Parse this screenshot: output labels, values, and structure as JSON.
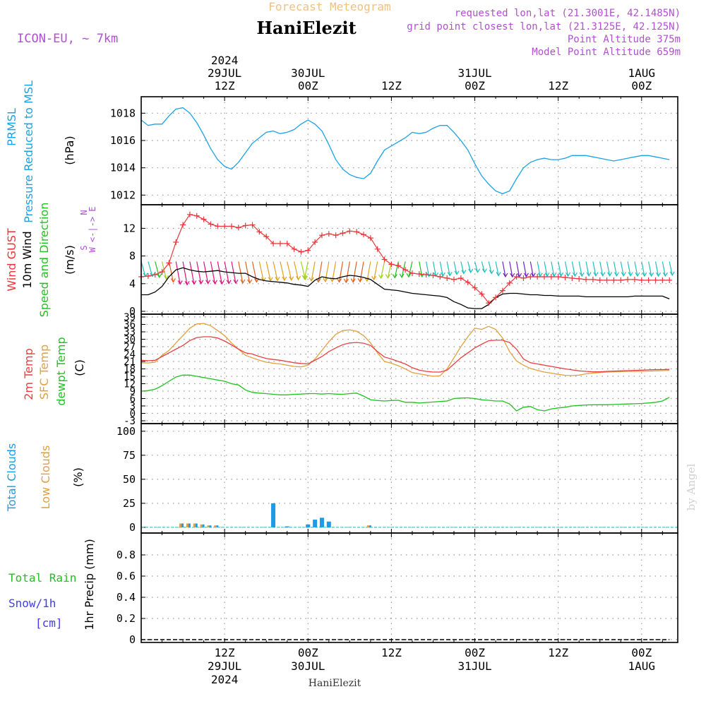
{
  "header": {
    "product": "Forecast Meteogram",
    "location": "HaniElezit",
    "model": "ICON-EU, ~ 7km",
    "requested": "requested lon,lat (21.3001E, 42.1485N)",
    "gridpoint": "grid point closest lon,lat (21.3125E, 42.125N)",
    "point_alt": "Point Altitude 375m",
    "model_alt": "Model Point Altitude 659m"
  },
  "footer": {
    "location": "HaniElezit",
    "watermark": "by Angel"
  },
  "colors": {
    "pressure": "#1ba1e8",
    "gust": "#e8363b",
    "wind": "#000000",
    "temp": "#e84040",
    "sfc": "#e0a040",
    "dewpt": "#22c022",
    "clouds_total": "#1e9be8",
    "clouds_low": "#e0a040",
    "rain": "#22c022",
    "snow": "#4040e8",
    "title": "#f0c080",
    "info": "#b050d0"
  },
  "time_axis": {
    "ticks": [
      {
        "h": 12,
        "top": [
          "2024",
          "29JUL",
          "12Z"
        ],
        "bottom": [
          "12Z",
          "29JUL",
          "2024"
        ]
      },
      {
        "h": 24,
        "top": [
          "30JUL",
          "00Z"
        ],
        "bottom": [
          "00Z",
          "30JUL"
        ]
      },
      {
        "h": 36,
        "top": [
          "12Z"
        ],
        "bottom": [
          "12Z"
        ]
      },
      {
        "h": 48,
        "top": [
          "31JUL",
          "00Z"
        ],
        "bottom": [
          "00Z",
          "31JUL"
        ]
      },
      {
        "h": 60,
        "top": [
          "12Z"
        ],
        "bottom": [
          "12Z"
        ]
      },
      {
        "h": 72,
        "top": [
          "1AUG",
          "00Z"
        ],
        "bottom": [
          "00Z",
          "1AUG"
        ]
      }
    ]
  },
  "chart_data": [
    {
      "type": "line",
      "title": "PRMSL Pressure Reduced to MSL",
      "ylabel_lines": [
        "PRMSL",
        "Pressure Reduced to MSL"
      ],
      "unit": "(hPa)",
      "ylim": [
        1011.5,
        1019
      ],
      "yticks": [
        1012,
        1014,
        1016,
        1018
      ],
      "x_hours": [
        0,
        1,
        2,
        3,
        4,
        5,
        6,
        7,
        8,
        9,
        10,
        11,
        12,
        13,
        14,
        15,
        16,
        17,
        18,
        19,
        20,
        21,
        22,
        23,
        24,
        25,
        26,
        27,
        28,
        29,
        30,
        31,
        32,
        33,
        34,
        35,
        36,
        37,
        38,
        39,
        40,
        41,
        42,
        43,
        44,
        45,
        46,
        47,
        48,
        49,
        50,
        51,
        52,
        53,
        54,
        55,
        56,
        57,
        58,
        59,
        60,
        61,
        62,
        63,
        64,
        65,
        66,
        67,
        68,
        69,
        70,
        71,
        72,
        73,
        74,
        75,
        76
      ],
      "series": [
        {
          "name": "PRMSL",
          "values": [
            1017.5,
            1017.1,
            1017.2,
            1017.2,
            1017.8,
            1018.3,
            1018.4,
            1018.0,
            1017.3,
            1016.4,
            1015.4,
            1014.6,
            1014.1,
            1013.9,
            1014.4,
            1015.1,
            1015.8,
            1016.2,
            1016.6,
            1016.7,
            1016.5,
            1016.6,
            1016.8,
            1017.2,
            1017.5,
            1017.2,
            1016.7,
            1015.7,
            1014.6,
            1013.9,
            1013.5,
            1013.3,
            1013.2,
            1013.6,
            1014.5,
            1015.3,
            1015.6,
            1015.9,
            1016.2,
            1016.6,
            1016.5,
            1016.6,
            1016.9,
            1017.1,
            1017.1,
            1016.6,
            1016.0,
            1015.3,
            1014.3,
            1013.4,
            1012.8,
            1012.3,
            1012.1,
            1012.3,
            1013.2,
            1014.0,
            1014.4,
            1014.6,
            1014.7,
            1014.6,
            1014.6,
            1014.7,
            1014.9,
            1014.9,
            1014.9,
            1014.8,
            1014.7,
            1014.6,
            1014.5,
            1014.6,
            1014.7,
            1014.8,
            1014.9,
            1014.9,
            1014.8,
            1014.7,
            1014.6
          ]
        }
      ]
    },
    {
      "type": "line",
      "title": "Wind GUST, 10m Wind Speed and Direction",
      "ylabel_lines": [
        "Wind GUST",
        "10m Wind",
        "Speed and Direction"
      ],
      "unit": "(m/s)",
      "compass": [
        "N",
        "W <-|-> E",
        "S"
      ],
      "ylim": [
        0,
        15
      ],
      "yticks": [
        0,
        4,
        8,
        12
      ],
      "x_hours": [
        0,
        1,
        2,
        3,
        4,
        5,
        6,
        7,
        8,
        9,
        10,
        11,
        12,
        13,
        14,
        15,
        16,
        17,
        18,
        19,
        20,
        21,
        22,
        23,
        24,
        25,
        26,
        27,
        28,
        29,
        30,
        31,
        32,
        33,
        34,
        35,
        36,
        37,
        38,
        39,
        40,
        41,
        42,
        43,
        44,
        45,
        46,
        47,
        48,
        49,
        50,
        51,
        52,
        53,
        54,
        55,
        56,
        57,
        58,
        59,
        60,
        61,
        62,
        63,
        64,
        65,
        66,
        67,
        68,
        69,
        70,
        71,
        72,
        73,
        74,
        75,
        76
      ],
      "series": [
        {
          "name": "Wind GUST",
          "values": [
            5.0,
            5.1,
            5.3,
            5.7,
            7.0,
            10.0,
            12.5,
            14.0,
            13.8,
            13.3,
            12.6,
            12.3,
            12.3,
            12.3,
            12.1,
            12.4,
            12.5,
            11.5,
            10.8,
            9.8,
            9.8,
            9.8,
            9.0,
            8.6,
            8.8,
            10.0,
            11.0,
            11.2,
            11.0,
            11.3,
            11.6,
            11.5,
            11.1,
            10.6,
            9.0,
            7.5,
            6.8,
            6.6,
            6.0,
            5.5,
            5.4,
            5.3,
            5.2,
            5.0,
            4.8,
            4.6,
            4.8,
            4.2,
            3.4,
            2.5,
            1.2,
            2.0,
            3.0,
            4.1,
            5.0,
            4.8,
            5.0,
            5.0,
            5.0,
            5.0,
            5.0,
            4.9,
            4.8,
            4.7,
            4.6,
            4.6,
            4.5,
            4.5,
            4.5,
            4.5,
            4.6,
            4.6,
            4.5,
            4.5,
            4.5,
            4.5,
            4.5
          ]
        },
        {
          "name": "10m Wind",
          "values": [
            2.4,
            2.4,
            2.8,
            3.6,
            5.0,
            6.0,
            6.3,
            6.0,
            5.8,
            5.7,
            5.8,
            5.9,
            5.7,
            5.6,
            5.5,
            5.5,
            5.0,
            4.6,
            4.4,
            4.3,
            4.2,
            4.1,
            3.9,
            3.8,
            3.6,
            4.5,
            5.0,
            4.8,
            4.7,
            5.0,
            5.2,
            5.1,
            4.9,
            4.6,
            3.9,
            3.2,
            3.1,
            3.0,
            2.8,
            2.6,
            2.5,
            2.4,
            2.3,
            2.2,
            2.0,
            1.4,
            1.0,
            0.5,
            0.4,
            0.4,
            1.0,
            2.0,
            2.5,
            2.6,
            2.6,
            2.5,
            2.4,
            2.4,
            2.3,
            2.3,
            2.2,
            2.2,
            2.2,
            2.2,
            2.1,
            2.1,
            2.1,
            2.1,
            2.1,
            2.1,
            2.1,
            2.2,
            2.2,
            2.2,
            2.2,
            2.2,
            1.8
          ]
        }
      ]
    },
    {
      "type": "line",
      "title": "2m Temp, SFC Temp, dewpt Temp",
      "ylabel_lines": [
        "2m Temp",
        "SFC Temp",
        "dewpt Temp"
      ],
      "unit": "(C)",
      "ylim": [
        -3,
        39
      ],
      "yticks": [
        -3,
        0,
        3,
        6,
        9,
        12,
        15,
        18,
        21,
        24,
        27,
        30,
        33,
        36,
        39
      ],
      "x_hours": [
        0,
        1,
        2,
        3,
        4,
        5,
        6,
        7,
        8,
        9,
        10,
        11,
        12,
        13,
        14,
        15,
        16,
        17,
        18,
        19,
        20,
        21,
        22,
        23,
        24,
        25,
        26,
        27,
        28,
        29,
        30,
        31,
        32,
        33,
        34,
        35,
        36,
        37,
        38,
        39,
        40,
        41,
        42,
        43,
        44,
        45,
        46,
        47,
        48,
        49,
        50,
        51,
        52,
        53,
        54,
        55,
        56,
        57,
        58,
        59,
        60,
        61,
        62,
        63,
        64,
        65,
        66,
        67,
        68,
        69,
        70,
        71,
        72,
        73,
        74,
        75,
        76
      ],
      "series": [
        {
          "name": "2m Temp",
          "values": [
            21.5,
            21.3,
            21.5,
            23.0,
            24.5,
            26.0,
            27.5,
            29.5,
            30.7,
            31.0,
            31.0,
            30.5,
            29.3,
            27.7,
            26.0,
            24.5,
            24.0,
            23.0,
            22.2,
            21.8,
            21.5,
            21.0,
            20.5,
            20.2,
            20.0,
            21.5,
            23.0,
            25.0,
            26.5,
            27.8,
            28.5,
            28.7,
            28.4,
            27.5,
            25.0,
            22.8,
            22.0,
            21.0,
            20.0,
            18.5,
            17.5,
            17.0,
            16.7,
            16.7,
            17.5,
            20.0,
            22.5,
            24.5,
            26.5,
            28.0,
            29.4,
            29.6,
            29.6,
            28.7,
            26.0,
            22.0,
            20.5,
            20.0,
            19.5,
            19.0,
            18.5,
            18.0,
            17.6,
            17.2,
            17.0,
            16.8,
            16.8,
            17.0,
            17.1,
            17.2,
            17.3,
            17.4,
            17.5,
            17.6,
            17.7,
            17.7,
            17.8
          ]
        },
        {
          "name": "SFC Temp",
          "values": [
            20.5,
            20.4,
            20.7,
            23.5,
            25.5,
            28.5,
            31.5,
            34.5,
            36.2,
            36.4,
            35.5,
            33.5,
            31.5,
            28.5,
            26.0,
            23.5,
            22.5,
            21.5,
            20.7,
            20.3,
            20.0,
            19.5,
            19.0,
            18.8,
            19.5,
            22.0,
            25.5,
            29.0,
            32.0,
            33.5,
            33.8,
            33.2,
            31.5,
            28.5,
            24.5,
            21.0,
            20.3,
            19.3,
            18.0,
            16.5,
            16.0,
            15.5,
            15.0,
            15.2,
            18.0,
            22.5,
            27.0,
            31.0,
            34.5,
            34.0,
            35.2,
            34.0,
            30.5,
            25.0,
            21.2,
            19.5,
            18.2,
            17.4,
            16.7,
            16.3,
            15.8,
            15.4,
            15.3,
            15.5,
            16.0,
            16.3,
            16.5,
            16.7,
            16.8,
            16.9,
            17.0,
            17.0,
            17.0,
            17.1,
            17.2,
            17.3,
            17.4
          ]
        },
        {
          "name": "dewpt Temp",
          "values": [
            9.0,
            9.2,
            9.8,
            11.2,
            13.0,
            14.7,
            15.5,
            15.5,
            15.0,
            14.5,
            14.0,
            13.5,
            13.0,
            12.0,
            11.5,
            9.5,
            8.5,
            8.2,
            8.0,
            7.7,
            7.5,
            7.5,
            7.7,
            7.8,
            8.0,
            8.0,
            7.8,
            8.0,
            7.8,
            7.7,
            8.0,
            8.2,
            7.0,
            5.5,
            5.2,
            5.0,
            5.2,
            5.3,
            4.5,
            4.5,
            4.2,
            4.4,
            4.6,
            4.8,
            5.0,
            6.0,
            6.2,
            6.3,
            6.0,
            5.5,
            5.3,
            5.0,
            5.0,
            3.8,
            1.0,
            2.5,
            2.8,
            1.5,
            1.0,
            1.8,
            2.2,
            2.5,
            3.0,
            3.2,
            3.4,
            3.5,
            3.5,
            3.5,
            3.6,
            3.7,
            3.8,
            3.9,
            4.0,
            4.2,
            4.5,
            5.0,
            6.5
          ]
        }
      ]
    },
    {
      "type": "bar",
      "title": "Total Clouds, Low Clouds",
      "ylabel_lines": [
        "Total Clouds",
        "Low Clouds"
      ],
      "unit": "(%)",
      "ylim": [
        -3,
        105
      ],
      "yticks": [
        0,
        25,
        50,
        75,
        100
      ],
      "x_hours": [
        6,
        7,
        8,
        9,
        10,
        11,
        19,
        21,
        24,
        25,
        26,
        27,
        33
      ],
      "series": [
        {
          "name": "Total Clouds",
          "values": [
            4,
            4,
            4,
            3,
            2,
            2,
            25,
            1,
            3,
            8,
            10,
            6,
            2
          ]
        },
        {
          "name": "Low Clouds",
          "values": [
            4,
            4,
            4,
            3,
            2,
            2,
            0,
            0,
            0,
            0,
            0,
            0,
            2
          ]
        }
      ]
    },
    {
      "type": "line",
      "title": "1hr Precip (mm)",
      "ylabel_lines": [
        "Total  Rain",
        "Snow/1h",
        "[cm]"
      ],
      "axis_label": "1hr Precip (mm)",
      "ylim": [
        0,
        0.98
      ],
      "yticks": [
        0,
        0.2,
        0.4,
        0.6,
        0.8
      ],
      "x_hours": [
        0,
        76
      ],
      "series": [
        {
          "name": "Total Rain",
          "values": [
            0,
            0
          ]
        }
      ]
    }
  ]
}
